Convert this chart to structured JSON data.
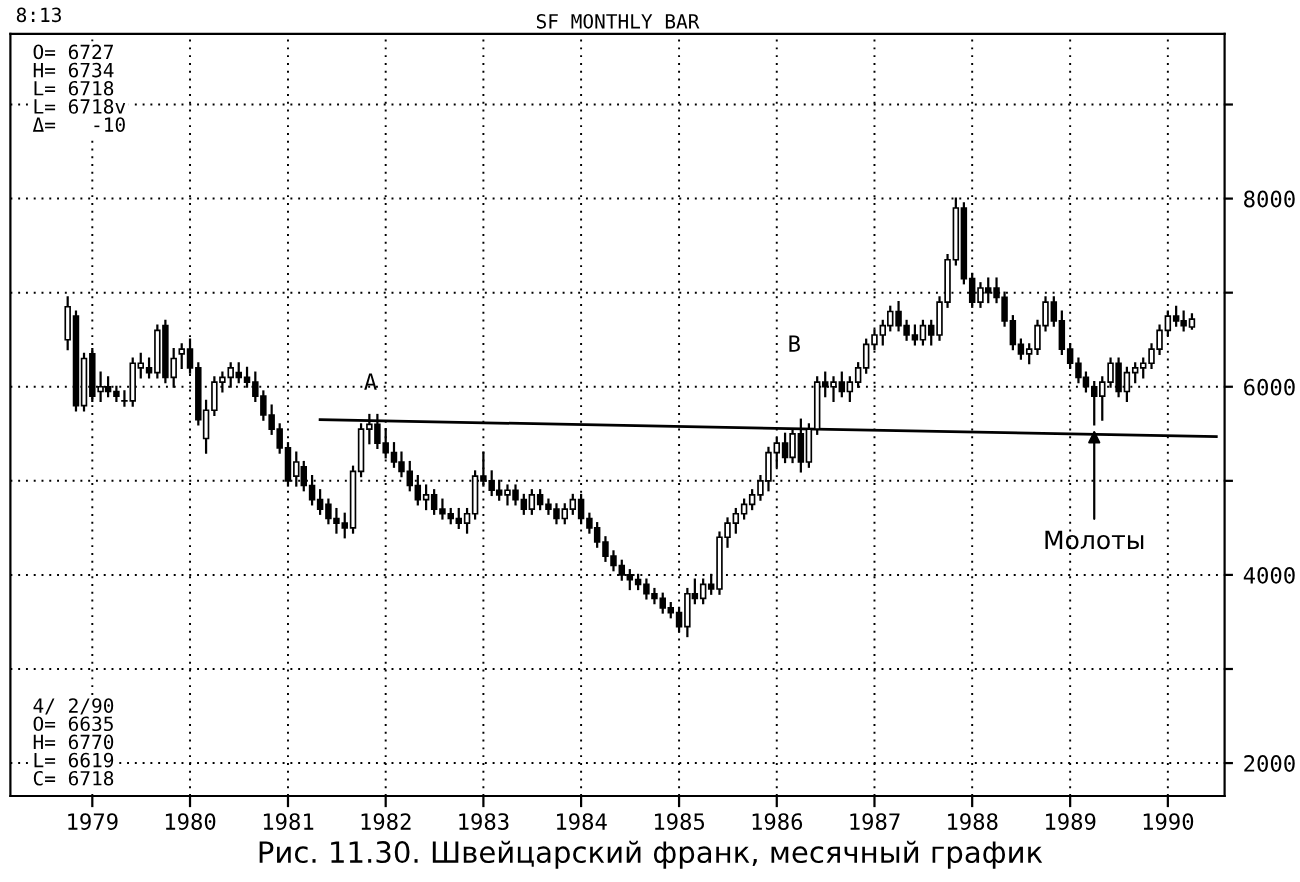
{
  "chart_data": {
    "type": "candlestick",
    "title": "SF MONTHLY BAR",
    "color": "#000000",
    "annotations": [
      "8:13",
      "O= 6727\nH= 6734\nL= 6718\nL= 6718v\nΔ=   -10",
      "4/ 2/90\nO= 6635\nH= 6770\nL= 6619\nC= 6718",
      "Рис. 11.30. Швейцарский франк, месячный график",
      "A",
      "B",
      {
        "text": "Молоты",
        "x": "1989-04",
        "y": 5600
      }
    ],
    "x": [
      "1978-10",
      "1978-11",
      "1978-12",
      "1979-01",
      "1979-02",
      "1979-03",
      "1979-04",
      "1979-05",
      "1979-06",
      "1979-07",
      "1979-08",
      "1979-09",
      "1979-10",
      "1979-11",
      "1979-12",
      "1980-01",
      "1980-02",
      "1980-03",
      "1980-04",
      "1980-05",
      "1980-06",
      "1980-07",
      "1980-08",
      "1980-09",
      "1980-10",
      "1980-11",
      "1980-12",
      "1981-01",
      "1981-02",
      "1981-03",
      "1981-04",
      "1981-05",
      "1981-06",
      "1981-07",
      "1981-08",
      "1981-09",
      "1981-10",
      "1981-11",
      "1981-12",
      "1982-01",
      "1982-02",
      "1982-03",
      "1982-04",
      "1982-05",
      "1982-06",
      "1982-07",
      "1982-08",
      "1982-09",
      "1982-10",
      "1982-11",
      "1982-12",
      "1983-01",
      "1983-02",
      "1983-03",
      "1983-04",
      "1983-05",
      "1983-06",
      "1983-07",
      "1983-08",
      "1983-09",
      "1983-10",
      "1983-11",
      "1983-12",
      "1984-01",
      "1984-02",
      "1984-03",
      "1984-04",
      "1984-05",
      "1984-06",
      "1984-07",
      "1984-08",
      "1984-09",
      "1984-10",
      "1984-11",
      "1984-12",
      "1985-01",
      "1985-02",
      "1985-03",
      "1985-04",
      "1985-05",
      "1985-06",
      "1985-07",
      "1985-08",
      "1985-09",
      "1985-10",
      "1985-11",
      "1985-12",
      "1986-01",
      "1986-02",
      "1986-03",
      "1986-04",
      "1986-05",
      "1986-06",
      "1986-07",
      "1986-08",
      "1986-09",
      "1986-10",
      "1986-11",
      "1986-12",
      "1987-01",
      "1987-02",
      "1987-03",
      "1987-04",
      "1987-05",
      "1987-06",
      "1987-07",
      "1987-08",
      "1987-09",
      "1987-10",
      "1987-11",
      "1987-12",
      "1988-01",
      "1988-02",
      "1988-03",
      "1988-04",
      "1988-05",
      "1988-06",
      "1988-07",
      "1988-08",
      "1988-09",
      "1988-10",
      "1988-11",
      "1988-12",
      "1989-01",
      "1989-02",
      "1989-03",
      "1989-04",
      "1989-05",
      "1989-06",
      "1989-07",
      "1989-08",
      "1989-09",
      "1989-10",
      "1989-11",
      "1989-12",
      "1990-01",
      "1990-02",
      "1990-03",
      "1990-04"
    ],
    "ohlc": [
      [
        6500,
        6950,
        6400,
        6850
      ],
      [
        6750,
        6800,
        5750,
        5800
      ],
      [
        5800,
        6350,
        5750,
        6300
      ],
      [
        6350,
        6400,
        5850,
        5900
      ],
      [
        5950,
        6150,
        5850,
        6000
      ],
      [
        6000,
        6100,
        5900,
        5950
      ],
      [
        5950,
        6000,
        5850,
        5900
      ],
      [
        5850,
        5950,
        5800,
        5850
      ],
      [
        5850,
        6300,
        5800,
        6250
      ],
      [
        6200,
        6350,
        6100,
        6250
      ],
      [
        6200,
        6300,
        6100,
        6150
      ],
      [
        6150,
        6650,
        6100,
        6600
      ],
      [
        6650,
        6700,
        6050,
        6100
      ],
      [
        6100,
        6400,
        6000,
        6300
      ],
      [
        6350,
        6450,
        6200,
        6400
      ],
      [
        6400,
        6500,
        6150,
        6200
      ],
      [
        6200,
        6250,
        5600,
        5650
      ],
      [
        5450,
        5850,
        5300,
        5750
      ],
      [
        5750,
        6100,
        5700,
        6050
      ],
      [
        6050,
        6150,
        5950,
        6100
      ],
      [
        6100,
        6250,
        6000,
        6200
      ],
      [
        6150,
        6250,
        6050,
        6100
      ],
      [
        6100,
        6200,
        6000,
        6050
      ],
      [
        6050,
        6150,
        5850,
        5900
      ],
      [
        5900,
        5950,
        5650,
        5700
      ],
      [
        5700,
        5800,
        5500,
        5550
      ],
      [
        5550,
        5600,
        5300,
        5350
      ],
      [
        5350,
        5400,
        4950,
        5000
      ],
      [
        5050,
        5300,
        4950,
        5200
      ],
      [
        5150,
        5200,
        4900,
        4950
      ],
      [
        4950,
        5050,
        4750,
        4800
      ],
      [
        4800,
        4900,
        4650,
        4700
      ],
      [
        4750,
        4800,
        4550,
        4600
      ],
      [
        4600,
        4700,
        4450,
        4550
      ],
      [
        4550,
        4650,
        4400,
        4500
      ],
      [
        4500,
        5150,
        4450,
        5100
      ],
      [
        5100,
        5600,
        5050,
        5550
      ],
      [
        5550,
        5700,
        5400,
        5600
      ],
      [
        5600,
        5700,
        5350,
        5400
      ],
      [
        5400,
        5550,
        5250,
        5300
      ],
      [
        5300,
        5400,
        5150,
        5200
      ],
      [
        5200,
        5300,
        5050,
        5100
      ],
      [
        5100,
        5200,
        4900,
        4950
      ],
      [
        4950,
        5050,
        4750,
        4800
      ],
      [
        4800,
        4950,
        4700,
        4850
      ],
      [
        4850,
        4900,
        4650,
        4700
      ],
      [
        4700,
        4800,
        4600,
        4650
      ],
      [
        4650,
        4700,
        4550,
        4600
      ],
      [
        4600,
        4700,
        4500,
        4550
      ],
      [
        4550,
        4700,
        4450,
        4650
      ],
      [
        4650,
        5100,
        4600,
        5050
      ],
      [
        5050,
        5300,
        4950,
        5000
      ],
      [
        5000,
        5100,
        4850,
        4900
      ],
      [
        4900,
        5000,
        4800,
        4850
      ],
      [
        4850,
        4950,
        4750,
        4900
      ],
      [
        4900,
        4950,
        4750,
        4800
      ],
      [
        4800,
        4850,
        4650,
        4700
      ],
      [
        4700,
        4900,
        4650,
        4850
      ],
      [
        4850,
        4900,
        4700,
        4750
      ],
      [
        4750,
        4800,
        4650,
        4700
      ],
      [
        4700,
        4750,
        4550,
        4600
      ],
      [
        4600,
        4750,
        4550,
        4700
      ],
      [
        4700,
        4850,
        4650,
        4800
      ],
      [
        4800,
        4850,
        4550,
        4600
      ],
      [
        4600,
        4650,
        4450,
        4500
      ],
      [
        4500,
        4550,
        4300,
        4350
      ],
      [
        4350,
        4400,
        4150,
        4200
      ],
      [
        4200,
        4250,
        4050,
        4100
      ],
      [
        4100,
        4150,
        3950,
        4000
      ],
      [
        4000,
        4050,
        3850,
        3950
      ],
      [
        3950,
        4000,
        3850,
        3900
      ],
      [
        3900,
        3950,
        3750,
        3800
      ],
      [
        3800,
        3850,
        3700,
        3750
      ],
      [
        3750,
        3800,
        3600,
        3650
      ],
      [
        3650,
        3700,
        3550,
        3600
      ],
      [
        3600,
        3650,
        3400,
        3450
      ],
      [
        3450,
        3850,
        3350,
        3800
      ],
      [
        3800,
        3950,
        3700,
        3750
      ],
      [
        3750,
        3950,
        3700,
        3900
      ],
      [
        3900,
        4000,
        3800,
        3850
      ],
      [
        3850,
        4450,
        3800,
        4400
      ],
      [
        4400,
        4600,
        4300,
        4550
      ],
      [
        4550,
        4700,
        4450,
        4650
      ],
      [
        4650,
        4800,
        4600,
        4750
      ],
      [
        4750,
        4900,
        4700,
        4850
      ],
      [
        4850,
        5050,
        4800,
        5000
      ],
      [
        5000,
        5350,
        4900,
        5300
      ],
      [
        5300,
        5450,
        5150,
        5400
      ],
      [
        5400,
        5500,
        5200,
        5250
      ],
      [
        5250,
        5550,
        5200,
        5500
      ],
      [
        5500,
        5650,
        5100,
        5200
      ],
      [
        5200,
        5600,
        5150,
        5550
      ],
      [
        5550,
        6100,
        5500,
        6050
      ],
      [
        6050,
        6150,
        5900,
        6000
      ],
      [
        6000,
        6100,
        5850,
        6050
      ],
      [
        6050,
        6150,
        5900,
        5950
      ],
      [
        5950,
        6100,
        5850,
        6050
      ],
      [
        6050,
        6250,
        6000,
        6200
      ],
      [
        6200,
        6500,
        6150,
        6450
      ],
      [
        6450,
        6600,
        6400,
        6550
      ],
      [
        6550,
        6700,
        6450,
        6650
      ],
      [
        6650,
        6850,
        6600,
        6800
      ],
      [
        6800,
        6900,
        6600,
        6650
      ],
      [
        6650,
        6700,
        6500,
        6550
      ],
      [
        6550,
        6650,
        6450,
        6500
      ],
      [
        6500,
        6700,
        6450,
        6650
      ],
      [
        6650,
        6700,
        6450,
        6550
      ],
      [
        6550,
        6950,
        6500,
        6900
      ],
      [
        6900,
        7400,
        6850,
        7350
      ],
      [
        7350,
        8000,
        7300,
        7900
      ],
      [
        7900,
        7950,
        7100,
        7150
      ],
      [
        7150,
        7200,
        6850,
        6900
      ],
      [
        6900,
        7100,
        6850,
        7050
      ],
      [
        7050,
        7150,
        6900,
        7000
      ],
      [
        7050,
        7150,
        6900,
        6950
      ],
      [
        6950,
        7000,
        6650,
        6700
      ],
      [
        6700,
        6750,
        6400,
        6450
      ],
      [
        6450,
        6500,
        6300,
        6350
      ],
      [
        6350,
        6450,
        6250,
        6400
      ],
      [
        6400,
        6700,
        6350,
        6650
      ],
      [
        6650,
        6950,
        6600,
        6900
      ],
      [
        6900,
        6950,
        6650,
        6700
      ],
      [
        6700,
        6800,
        6350,
        6400
      ],
      [
        6400,
        6450,
        6200,
        6250
      ],
      [
        6250,
        6300,
        6050,
        6100
      ],
      [
        6100,
        6150,
        5950,
        6000
      ],
      [
        6000,
        6050,
        5600,
        5900
      ],
      [
        5900,
        6100,
        5650,
        6050
      ],
      [
        6050,
        6300,
        6000,
        6250
      ],
      [
        6250,
        6300,
        5900,
        5950
      ],
      [
        5950,
        6200,
        5850,
        6150
      ],
      [
        6150,
        6250,
        6050,
        6200
      ],
      [
        6200,
        6300,
        6100,
        6250
      ],
      [
        6250,
        6450,
        6200,
        6400
      ],
      [
        6400,
        6650,
        6350,
        6600
      ],
      [
        6600,
        6800,
        6550,
        6750
      ],
      [
        6750,
        6850,
        6650,
        6700
      ],
      [
        6700,
        6800,
        6600,
        6650
      ],
      [
        6635,
        6770,
        6619,
        6718
      ]
    ],
    "series": [
      {
        "type": "line",
        "color": "#000000",
        "x": [
          "1981-05",
          "1990-07"
        ],
        "values": [
          5650,
          5470
        ]
      }
    ],
    "xlim": [
      "1978-03",
      "1990-08"
    ],
    "xticks": [
      {
        "value": "1979-01",
        "label": "1979"
      },
      {
        "value": "1980-01",
        "label": "1980"
      },
      {
        "value": "1981-01",
        "label": "1981"
      },
      {
        "value": "1982-01",
        "label": "1982"
      },
      {
        "value": "1983-01",
        "label": "1983"
      },
      {
        "value": "1984-01",
        "label": "1984"
      },
      {
        "value": "1985-01",
        "label": "1985"
      },
      {
        "value": "1986-01",
        "label": "1986"
      },
      {
        "value": "1987-01",
        "label": "1987"
      },
      {
        "value": "1988-01",
        "label": "1988"
      },
      {
        "value": "1989-01",
        "label": "1989"
      },
      {
        "value": "1990-01",
        "label": "1990"
      }
    ],
    "ylim": [
      1650,
      9750
    ],
    "yticks": [
      2000,
      {
        "value": 3000,
        "label": null
      },
      4000,
      {
        "value": 5000,
        "label": null
      },
      6000,
      {
        "value": 7000,
        "label": null
      },
      8000,
      {
        "value": 9000,
        "label": null
      }
    ],
    "grid": true
  }
}
